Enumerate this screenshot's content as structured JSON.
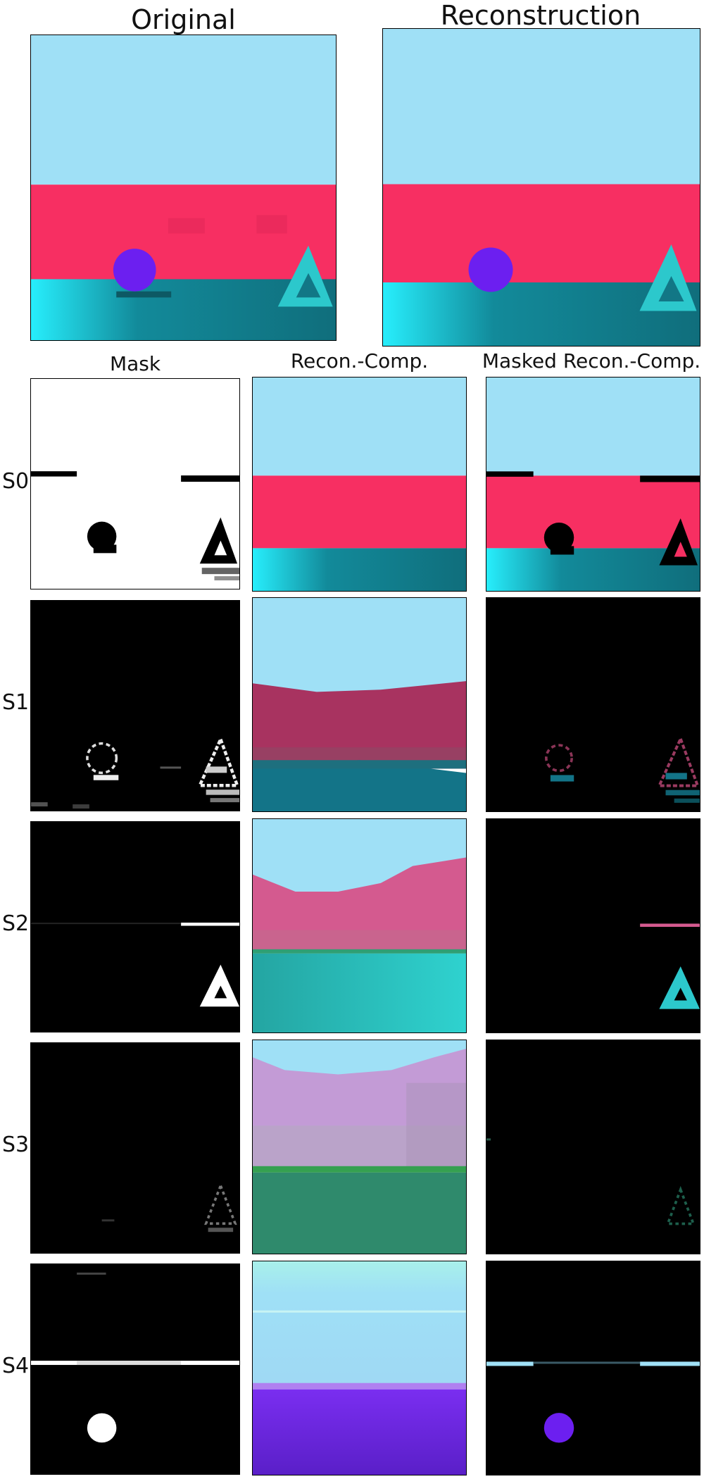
{
  "figure": {
    "top_titles": {
      "original": "Original",
      "reconstruction": "Reconstruction"
    },
    "column_titles": {
      "mask": "Mask",
      "recon_comp": "Recon.-Comp.",
      "masked_recon_comp": "Masked Recon.-Comp."
    },
    "row_labels": [
      "S0",
      "S1",
      "S2",
      "S3",
      "S4"
    ]
  },
  "colors": {
    "sky": "#9fe0f6",
    "wall": "#f72f62",
    "floor": "#127786",
    "floor_bright": "#27eefc",
    "sphere": "#6c1ff0",
    "triangle": "#2cc8cc"
  }
}
